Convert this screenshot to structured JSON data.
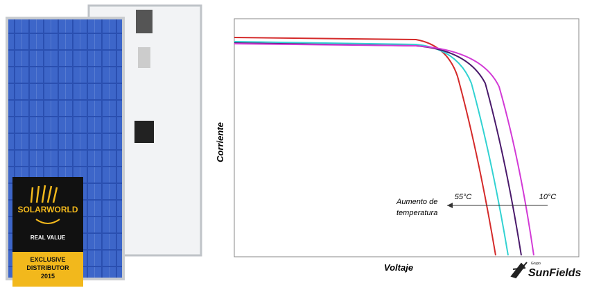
{
  "panel_badge": {
    "brand": "SOLARWORLD",
    "tagline": "REAL VALUE",
    "distributor": [
      "EXCLUSIVE",
      "DISTRIBUTOR",
      "2015"
    ]
  },
  "diagram": {
    "y_axis_label": "Corriente",
    "x_axis_label": "Voltaje",
    "annotation": [
      "Aumento de",
      "temperatura"
    ],
    "high_temp": "55°C",
    "low_temp": "10°C"
  },
  "logo": {
    "group": "Grupo",
    "name": "SunFields"
  }
}
